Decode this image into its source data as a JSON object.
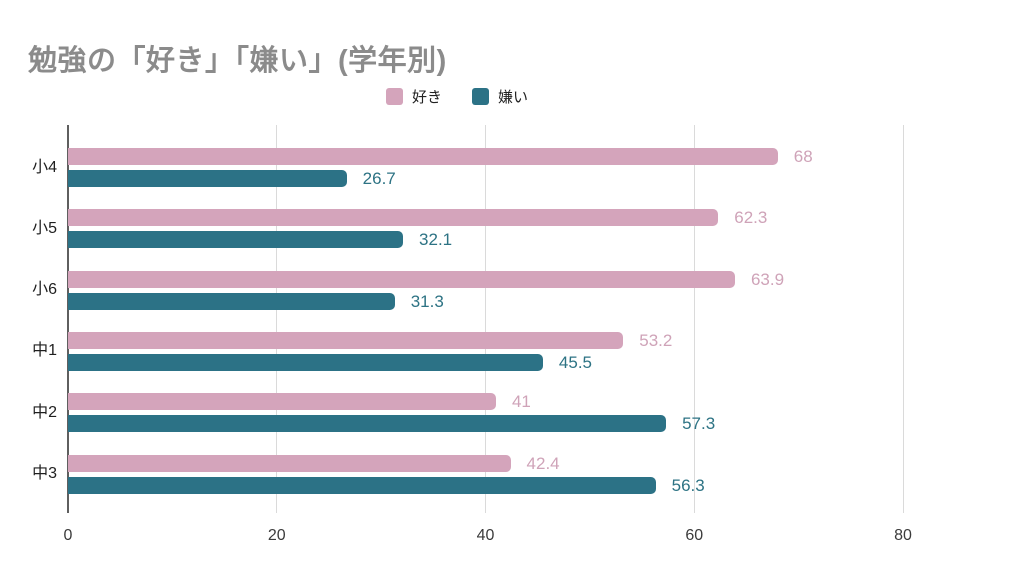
{
  "title": "勉強の「好き」「嫌い」(学年別)",
  "legend": {
    "items": [
      {
        "label": "好き",
        "color": "#d4a4bb"
      },
      {
        "label": "嫌い",
        "color": "#2c7286"
      }
    ]
  },
  "chart_data": {
    "type": "bar",
    "orientation": "horizontal",
    "title": "勉強の「好き」「嫌い」(学年別)",
    "categories": [
      "小4",
      "小5",
      "小6",
      "中1",
      "中2",
      "中3"
    ],
    "series": [
      {
        "name": "好き",
        "color": "#d4a4bb",
        "label_color": "#cfa3b8",
        "values": [
          68,
          62.3,
          63.9,
          53.2,
          41,
          42.4
        ]
      },
      {
        "name": "嫌い",
        "color": "#2c7286",
        "label_color": "#2d7384",
        "values": [
          26.7,
          32.1,
          31.3,
          45.5,
          57.3,
          56.3
        ]
      }
    ],
    "x_axis": {
      "ticks": [
        0,
        20,
        40,
        60,
        80
      ],
      "min": 0,
      "max": 80
    },
    "grid": "vertical",
    "legend_position": "top",
    "value_labels": "outside-end"
  },
  "colors": {
    "background": "#ffffff",
    "title_text": "#8b8b8b",
    "gridline": "#dadada",
    "axis_line": "#5f5f5f",
    "category_text": "#1f1f1f",
    "tick_text": "#3b3b3b"
  }
}
